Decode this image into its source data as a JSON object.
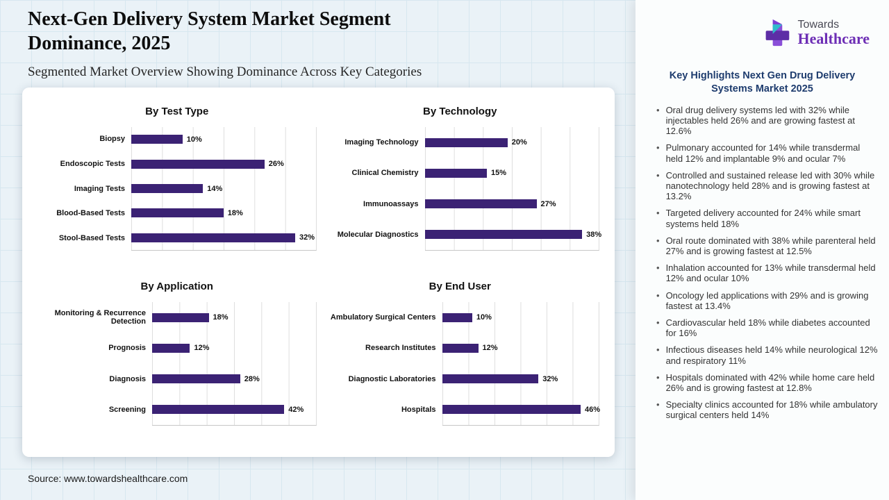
{
  "page": {
    "title": "Next-Gen Delivery System Market Segment Dominance, 2025",
    "subtitle": "Segmented Market Overview Showing Dominance Across Key Categories",
    "source": "Source: www.towardshealthcare.com"
  },
  "logo": {
    "name": "Towards",
    "brand": "Healthcare",
    "icon": "healthcare-plus-icon"
  },
  "sidebar": {
    "heading": "Key Highlights Next Gen Drug Delivery Systems Market 2025",
    "bullets": [
      "Oral drug delivery systems led with 32% while injectables held 26% and are growing fastest at 12.6%",
      "Pulmonary accounted for 14% while transdermal held 12% and implantable 9% and ocular 7%",
      "Controlled and sustained release led with 30% while nanotechnology held 28% and is growing fastest at 13.2%",
      "Targeted delivery accounted for 24% while smart systems held 18%",
      "Oral route dominated with 38% while parenteral held 27% and is growing fastest at 12.5%",
      "Inhalation accounted for 13% while transdermal held 12% and ocular 10%",
      "Oncology led applications with 29% and is growing fastest at 13.4%",
      "Cardiovascular held 18% while diabetes accounted for 16%",
      "Infectious diseases held 14% while neurological 12% and respiratory 11%",
      "Hospitals dominated with 42% while home care held 26% and is growing fastest at 12.8%",
      "Specialty clinics accounted for 18% while ambulatory surgical centers held 14%"
    ]
  },
  "colors": {
    "bar": "#3b2274",
    "sidebar_heading": "#1e3c6e",
    "brand_purple": "#6d2eb5",
    "logo_teal": "#2fbccb"
  },
  "chart_data": [
    {
      "type": "bar",
      "orientation": "horizontal",
      "title": "By Test Type",
      "categories": [
        "Biopsy",
        "Endoscopic Tests",
        "Imaging Tests",
        "Blood-Based Tests",
        "Stool-Based Tests"
      ],
      "values": [
        10,
        26,
        14,
        18,
        32
      ],
      "value_suffix": "%",
      "axis_max": 36,
      "label_width": 135,
      "grid": true,
      "legend": "none"
    },
    {
      "type": "bar",
      "orientation": "horizontal",
      "title": "By Technology",
      "categories": [
        "Imaging Technology",
        "Clinical Chemistry",
        "Immunoassays",
        "Molecular Diagnostics"
      ],
      "values": [
        20,
        15,
        27,
        38
      ],
      "value_suffix": "%",
      "axis_max": 42,
      "label_width": 150,
      "grid": true,
      "legend": "none"
    },
    {
      "type": "bar",
      "orientation": "horizontal",
      "title": "By Application",
      "categories": [
        "Monitoring & Recurrence Detection",
        "Prognosis",
        "Diagnosis",
        "Screening"
      ],
      "values": [
        18,
        12,
        28,
        42
      ],
      "value_suffix": "%",
      "axis_max": 52,
      "label_width": 165,
      "grid": true,
      "legend": "none"
    },
    {
      "type": "bar",
      "orientation": "horizontal",
      "title": "By End User",
      "categories": [
        "Ambulatory Surgical Centers",
        "Research Institutes",
        "Diagnostic Laboratories",
        "Hospitals"
      ],
      "values": [
        10,
        12,
        32,
        46
      ],
      "value_suffix": "%",
      "axis_max": 52,
      "label_width": 175,
      "grid": true,
      "legend": "none"
    }
  ]
}
